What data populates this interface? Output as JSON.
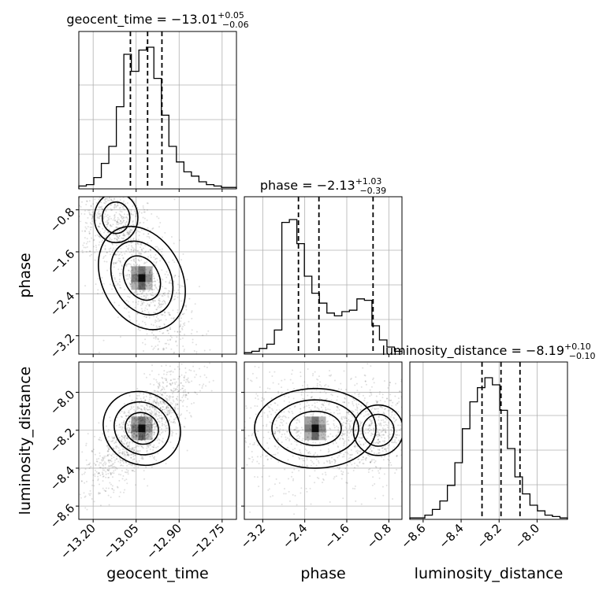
{
  "chart_data": {
    "type": "corner",
    "parameters": [
      "geocent_time",
      "phase",
      "luminosity_distance"
    ],
    "labels": {
      "geocent_time": "geocent_time",
      "phase": "phase",
      "luminosity_distance": "luminosity_distance"
    },
    "titles": [
      {
        "param": "geocent_time",
        "prefix": "geocent_time = ",
        "median": "−13.01",
        "plus": "+0.05",
        "minus": "−0.06"
      },
      {
        "param": "phase",
        "prefix": "phase = ",
        "median": "−2.13",
        "plus": "+1.03",
        "minus": "−0.39"
      },
      {
        "param": "luminosity_distance",
        "prefix": "luminosity_distance = ",
        "median": "−8.19",
        "plus": "+0.10",
        "minus": "−0.10"
      }
    ],
    "ranges": {
      "geocent_time": [
        -13.25,
        -12.7
      ],
      "phase": [
        -3.55,
        -0.55
      ],
      "luminosity_distance": [
        -8.67,
        -7.84
      ]
    },
    "ticks": {
      "geocent_time": {
        "values": [
          -13.2,
          -13.05,
          -12.9,
          -12.75
        ],
        "labels": [
          "−13.20",
          "−13.05",
          "−12.90",
          "−12.75"
        ]
      },
      "phase": {
        "values": [
          -3.2,
          -2.4,
          -1.6,
          -0.8
        ],
        "labels": [
          "−3.2",
          "−2.4",
          "−1.6",
          "−0.8"
        ]
      },
      "luminosity_distance": {
        "values": [
          -8.6,
          -8.4,
          -8.2,
          -8.0
        ],
        "labels": [
          "−8.6",
          "−8.4",
          "−8.2",
          "−8.0"
        ]
      }
    },
    "quantiles": {
      "geocent_time": [
        -13.07,
        -13.01,
        -12.96
      ],
      "phase": [
        -2.52,
        -2.13,
        -1.1
      ],
      "luminosity_distance": [
        -8.29,
        -8.19,
        -8.09
      ]
    },
    "histograms": {
      "geocent_time": [
        0.02,
        0.03,
        0.08,
        0.18,
        0.3,
        0.58,
        0.95,
        0.83,
        0.98,
        1.0,
        0.78,
        0.52,
        0.3,
        0.19,
        0.12,
        0.09,
        0.05,
        0.03,
        0.02,
        0.01,
        0.01
      ],
      "phase": [
        0.01,
        0.02,
        0.04,
        0.07,
        0.17,
        0.93,
        0.95,
        0.78,
        0.55,
        0.43,
        0.36,
        0.29,
        0.27,
        0.3,
        0.31,
        0.39,
        0.38,
        0.2,
        0.1,
        0.05,
        0.02
      ],
      "luminosity_distance": [
        0.01,
        0.01,
        0.03,
        0.07,
        0.13,
        0.24,
        0.4,
        0.64,
        0.83,
        0.93,
        1.0,
        0.95,
        0.77,
        0.5,
        0.3,
        0.18,
        0.1,
        0.06,
        0.03,
        0.02,
        0.01
      ]
    },
    "grid": true,
    "legend": "none"
  }
}
